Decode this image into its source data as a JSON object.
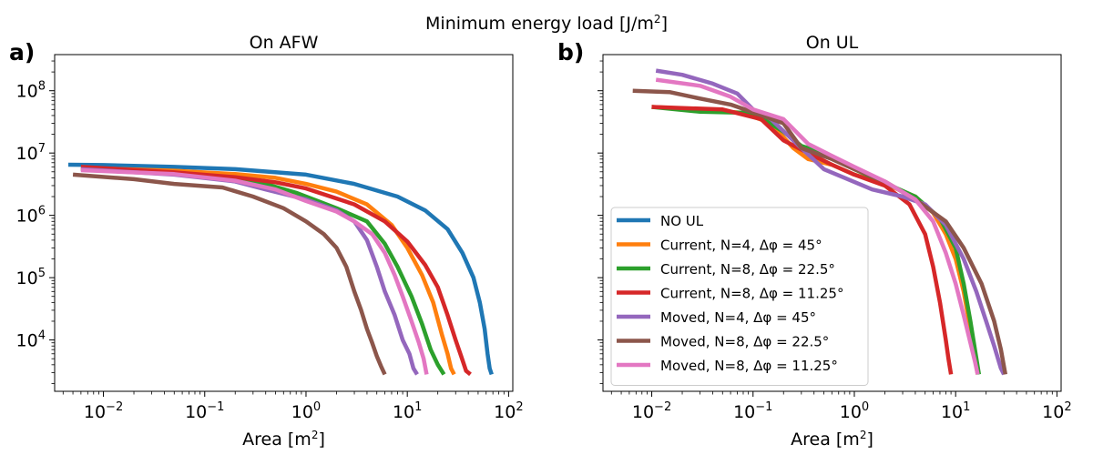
{
  "figure": {
    "suptitle_text": "Minimum energy load [J/m",
    "suptitle_sup": "2",
    "suptitle_end": "]"
  },
  "chart_data": [
    {
      "type": "line",
      "panel_letter": "a)",
      "title": "On AFW",
      "xlabel": "Area [m",
      "xlabel_sup": "2",
      "xlabel_end": "]",
      "xscale": "log",
      "yscale": "log",
      "xlim": [
        0.0033,
        110
      ],
      "ylim": [
        1500,
        380000000
      ],
      "x_ticks": [
        {
          "value": 0.01,
          "base": "10",
          "exp": "−2"
        },
        {
          "value": 0.1,
          "base": "10",
          "exp": "−1"
        },
        {
          "value": 1,
          "base": "10",
          "exp": "0"
        },
        {
          "value": 10,
          "base": "10",
          "exp": "1"
        },
        {
          "value": 100,
          "base": "10",
          "exp": "2"
        }
      ],
      "y_ticks": [
        {
          "value": 10000,
          "base": "10",
          "exp": "4"
        },
        {
          "value": 100000,
          "base": "10",
          "exp": "5"
        },
        {
          "value": 1000000,
          "base": "10",
          "exp": "6"
        },
        {
          "value": 10000000,
          "base": "10",
          "exp": "7"
        },
        {
          "value": 100000000,
          "base": "10",
          "exp": "8"
        }
      ],
      "series": [
        {
          "name": "NO UL",
          "color": "#1f77b4",
          "points": [
            [
              0.0045,
              6500000
            ],
            [
              0.01,
              6400000
            ],
            [
              0.05,
              6000000
            ],
            [
              0.2,
              5500000
            ],
            [
              1,
              4500000
            ],
            [
              3,
              3200000
            ],
            [
              8,
              2000000
            ],
            [
              15,
              1200000
            ],
            [
              25,
              600000
            ],
            [
              35,
              250000
            ],
            [
              45,
              100000
            ],
            [
              52,
              40000
            ],
            [
              58,
              15000
            ],
            [
              62,
              6000
            ],
            [
              65,
              3500
            ],
            [
              68,
              2800
            ]
          ]
        },
        {
          "name": "Current, N=4, Δφ = 45°",
          "color": "#ff7f0e",
          "points": [
            [
              0.006,
              5800000
            ],
            [
              0.05,
              5200000
            ],
            [
              0.2,
              4600000
            ],
            [
              0.5,
              4000000
            ],
            [
              1,
              3200000
            ],
            [
              2,
              2400000
            ],
            [
              4,
              1500000
            ],
            [
              7,
              700000
            ],
            [
              10,
              300000
            ],
            [
              14,
              110000
            ],
            [
              18,
              40000
            ],
            [
              22,
              12000
            ],
            [
              25,
              6000
            ],
            [
              27,
              3500
            ],
            [
              29,
              2800
            ]
          ]
        },
        {
          "name": "Current, N=8, Δφ = 22.5°",
          "color": "#2ca02c",
          "points": [
            [
              0.006,
              5600000
            ],
            [
              0.05,
              4800000
            ],
            [
              0.2,
              4000000
            ],
            [
              0.4,
              3200000
            ],
            [
              0.8,
              2300000
            ],
            [
              2,
              1300000
            ],
            [
              4,
              800000
            ],
            [
              6,
              350000
            ],
            [
              8,
              150000
            ],
            [
              11,
              50000
            ],
            [
              14,
              18000
            ],
            [
              17,
              7000
            ],
            [
              20,
              4000
            ],
            [
              23,
              2800
            ]
          ]
        },
        {
          "name": "Current, N=8, Δφ = 11.25°",
          "color": "#d62728",
          "points": [
            [
              0.006,
              6000000
            ],
            [
              0.05,
              4900000
            ],
            [
              0.2,
              4100000
            ],
            [
              0.5,
              3400000
            ],
            [
              1,
              2700000
            ],
            [
              3,
              1500000
            ],
            [
              6,
              800000
            ],
            [
              10,
              380000
            ],
            [
              15,
              160000
            ],
            [
              20,
              70000
            ],
            [
              25,
              25000
            ],
            [
              30,
              10000
            ],
            [
              34,
              5500
            ],
            [
              38,
              3200
            ],
            [
              42,
              2800
            ]
          ]
        },
        {
          "name": "Moved, N=4, Δφ = 45°",
          "color": "#9467bd",
          "points": [
            [
              0.006,
              5500000
            ],
            [
              0.05,
              4500000
            ],
            [
              0.2,
              3500000
            ],
            [
              0.4,
              2600000
            ],
            [
              1,
              1800000
            ],
            [
              2,
              1200000
            ],
            [
              3,
              800000
            ],
            [
              4,
              400000
            ],
            [
              5,
              150000
            ],
            [
              6,
              60000
            ],
            [
              7.5,
              25000
            ],
            [
              9,
              10000
            ],
            [
              10.5,
              6000
            ],
            [
              11.5,
              3500
            ],
            [
              12.5,
              2800
            ]
          ]
        },
        {
          "name": "Moved, N=8, Δφ = 22.5°",
          "color": "#8c564b",
          "points": [
            [
              0.005,
              4500000
            ],
            [
              0.02,
              3800000
            ],
            [
              0.05,
              3200000
            ],
            [
              0.15,
              2800000
            ],
            [
              0.3,
              2000000
            ],
            [
              0.6,
              1300000
            ],
            [
              1,
              800000
            ],
            [
              1.5,
              500000
            ],
            [
              2,
              300000
            ],
            [
              2.5,
              150000
            ],
            [
              3,
              60000
            ],
            [
              3.5,
              30000
            ],
            [
              4,
              15000
            ],
            [
              4.5,
              9000
            ],
            [
              5,
              5500
            ],
            [
              5.5,
              3800
            ],
            [
              6,
              2800
            ]
          ]
        },
        {
          "name": "Moved, N=8, Δφ = 11.25°",
          "color": "#e377c2",
          "points": [
            [
              0.006,
              5300000
            ],
            [
              0.05,
              4600000
            ],
            [
              0.2,
              3600000
            ],
            [
              0.5,
              2600000
            ],
            [
              1,
              1700000
            ],
            [
              2,
              1150000
            ],
            [
              3,
              800000
            ],
            [
              4.5,
              500000
            ],
            [
              6,
              250000
            ],
            [
              7.5,
              110000
            ],
            [
              9,
              50000
            ],
            [
              11,
              20000
            ],
            [
              13,
              9000
            ],
            [
              14.5,
              5000
            ],
            [
              15.5,
              2800
            ]
          ]
        }
      ]
    },
    {
      "type": "line",
      "panel_letter": "b)",
      "title": "On UL",
      "xlabel": "Area [m",
      "xlabel_sup": "2",
      "xlabel_end": "]",
      "xscale": "log",
      "yscale": "log",
      "xlim": [
        0.0033,
        110
      ],
      "ylim": [
        1500,
        380000000
      ],
      "x_ticks": [
        {
          "value": 0.01,
          "base": "10",
          "exp": "−2"
        },
        {
          "value": 0.1,
          "base": "10",
          "exp": "−1"
        },
        {
          "value": 1,
          "base": "10",
          "exp": "0"
        },
        {
          "value": 10,
          "base": "10",
          "exp": "1"
        },
        {
          "value": 100,
          "base": "10",
          "exp": "2"
        }
      ],
      "y_ticks": [
        {
          "value": 10000,
          "base": "10",
          "exp": "4"
        },
        {
          "value": 100000,
          "base": "10",
          "exp": "5"
        },
        {
          "value": 1000000,
          "base": "10",
          "exp": "6"
        },
        {
          "value": 10000000,
          "base": "10",
          "exp": "7"
        },
        {
          "value": 100000000,
          "base": "10",
          "exp": "8"
        }
      ],
      "legend_position": "lower-left",
      "series": [
        {
          "name": "NO UL",
          "color": "#1f77b4",
          "points": []
        },
        {
          "name": "Current, N=4, Δφ = 45°",
          "color": "#ff7f0e",
          "points": [
            [
              0.01,
              55000000
            ],
            [
              0.03,
              50000000
            ],
            [
              0.08,
              44000000
            ],
            [
              0.15,
              30000000
            ],
            [
              0.25,
              12000000
            ],
            [
              0.35,
              8000000
            ],
            [
              0.6,
              6500000
            ],
            [
              1,
              4500000
            ],
            [
              2,
              3200000
            ],
            [
              4,
              2000000
            ],
            [
              6,
              1100000
            ],
            [
              8,
              500000
            ],
            [
              10,
              200000
            ],
            [
              12,
              60000
            ],
            [
              14,
              15000
            ],
            [
              15.5,
              5000
            ],
            [
              16.5,
              2800
            ]
          ]
        },
        {
          "name": "Current, N=8, Δφ = 22.5°",
          "color": "#2ca02c",
          "points": [
            [
              0.01,
              55000000
            ],
            [
              0.03,
              46000000
            ],
            [
              0.1,
              44000000
            ],
            [
              0.2,
              22000000
            ],
            [
              0.3,
              13000000
            ],
            [
              0.5,
              10000000
            ],
            [
              1,
              5500000
            ],
            [
              2,
              3300000
            ],
            [
              4,
              2000000
            ],
            [
              7,
              900000
            ],
            [
              10,
              300000
            ],
            [
              12,
              80000
            ],
            [
              14,
              20000
            ],
            [
              15.5,
              7000
            ],
            [
              17,
              2800
            ]
          ]
        },
        {
          "name": "Current, N=8, Δφ = 11.25°",
          "color": "#d62728",
          "points": [
            [
              0.01,
              55000000
            ],
            [
              0.05,
              50000000
            ],
            [
              0.12,
              35000000
            ],
            [
              0.2,
              16000000
            ],
            [
              0.35,
              10000000
            ],
            [
              0.6,
              6500000
            ],
            [
              1,
              4500000
            ],
            [
              2,
              3000000
            ],
            [
              3.5,
              1500000
            ],
            [
              5,
              500000
            ],
            [
              6,
              150000
            ],
            [
              7,
              40000
            ],
            [
              8,
              10000
            ],
            [
              8.5,
              5000
            ],
            [
              9,
              2800
            ]
          ]
        },
        {
          "name": "Moved, N=4, Δφ = 45°",
          "color": "#9467bd",
          "points": [
            [
              0.011,
              210000000
            ],
            [
              0.02,
              180000000
            ],
            [
              0.04,
              130000000
            ],
            [
              0.07,
              90000000
            ],
            [
              0.1,
              50000000
            ],
            [
              0.15,
              35000000
            ],
            [
              0.3,
              12000000
            ],
            [
              0.5,
              5500000
            ],
            [
              0.8,
              4000000
            ],
            [
              1.5,
              2600000
            ],
            [
              3,
              2000000
            ],
            [
              5,
              1500000
            ],
            [
              8,
              700000
            ],
            [
              12,
              200000
            ],
            [
              16,
              60000
            ],
            [
              20,
              20000
            ],
            [
              24,
              8000
            ],
            [
              28,
              3500
            ],
            [
              30,
              2800
            ]
          ]
        },
        {
          "name": "Moved, N=8, Δφ = 22.5°",
          "color": "#8c564b",
          "points": [
            [
              0.0065,
              100000000
            ],
            [
              0.015,
              95000000
            ],
            [
              0.03,
              75000000
            ],
            [
              0.06,
              60000000
            ],
            [
              0.1,
              45000000
            ],
            [
              0.2,
              30000000
            ],
            [
              0.3,
              12000000
            ],
            [
              0.6,
              8000000
            ],
            [
              1,
              5500000
            ],
            [
              2,
              3500000
            ],
            [
              4,
              1800000
            ],
            [
              8,
              800000
            ],
            [
              12,
              300000
            ],
            [
              18,
              80000
            ],
            [
              24,
              20000
            ],
            [
              28,
              7000
            ],
            [
              31,
              2800
            ]
          ]
        },
        {
          "name": "Moved, N=8, Δφ = 11.25°",
          "color": "#e377c2",
          "points": [
            [
              0.011,
              150000000
            ],
            [
              0.03,
              120000000
            ],
            [
              0.06,
              80000000
            ],
            [
              0.1,
              50000000
            ],
            [
              0.2,
              35000000
            ],
            [
              0.35,
              14000000
            ],
            [
              0.6,
              9000000
            ],
            [
              1,
              6000000
            ],
            [
              2,
              3500000
            ],
            [
              4,
              1800000
            ],
            [
              6,
              800000
            ],
            [
              8,
              250000
            ],
            [
              10,
              80000
            ],
            [
              12,
              25000
            ],
            [
              14,
              9000
            ],
            [
              15.5,
              4500
            ],
            [
              16.5,
              2800
            ]
          ]
        }
      ]
    }
  ]
}
